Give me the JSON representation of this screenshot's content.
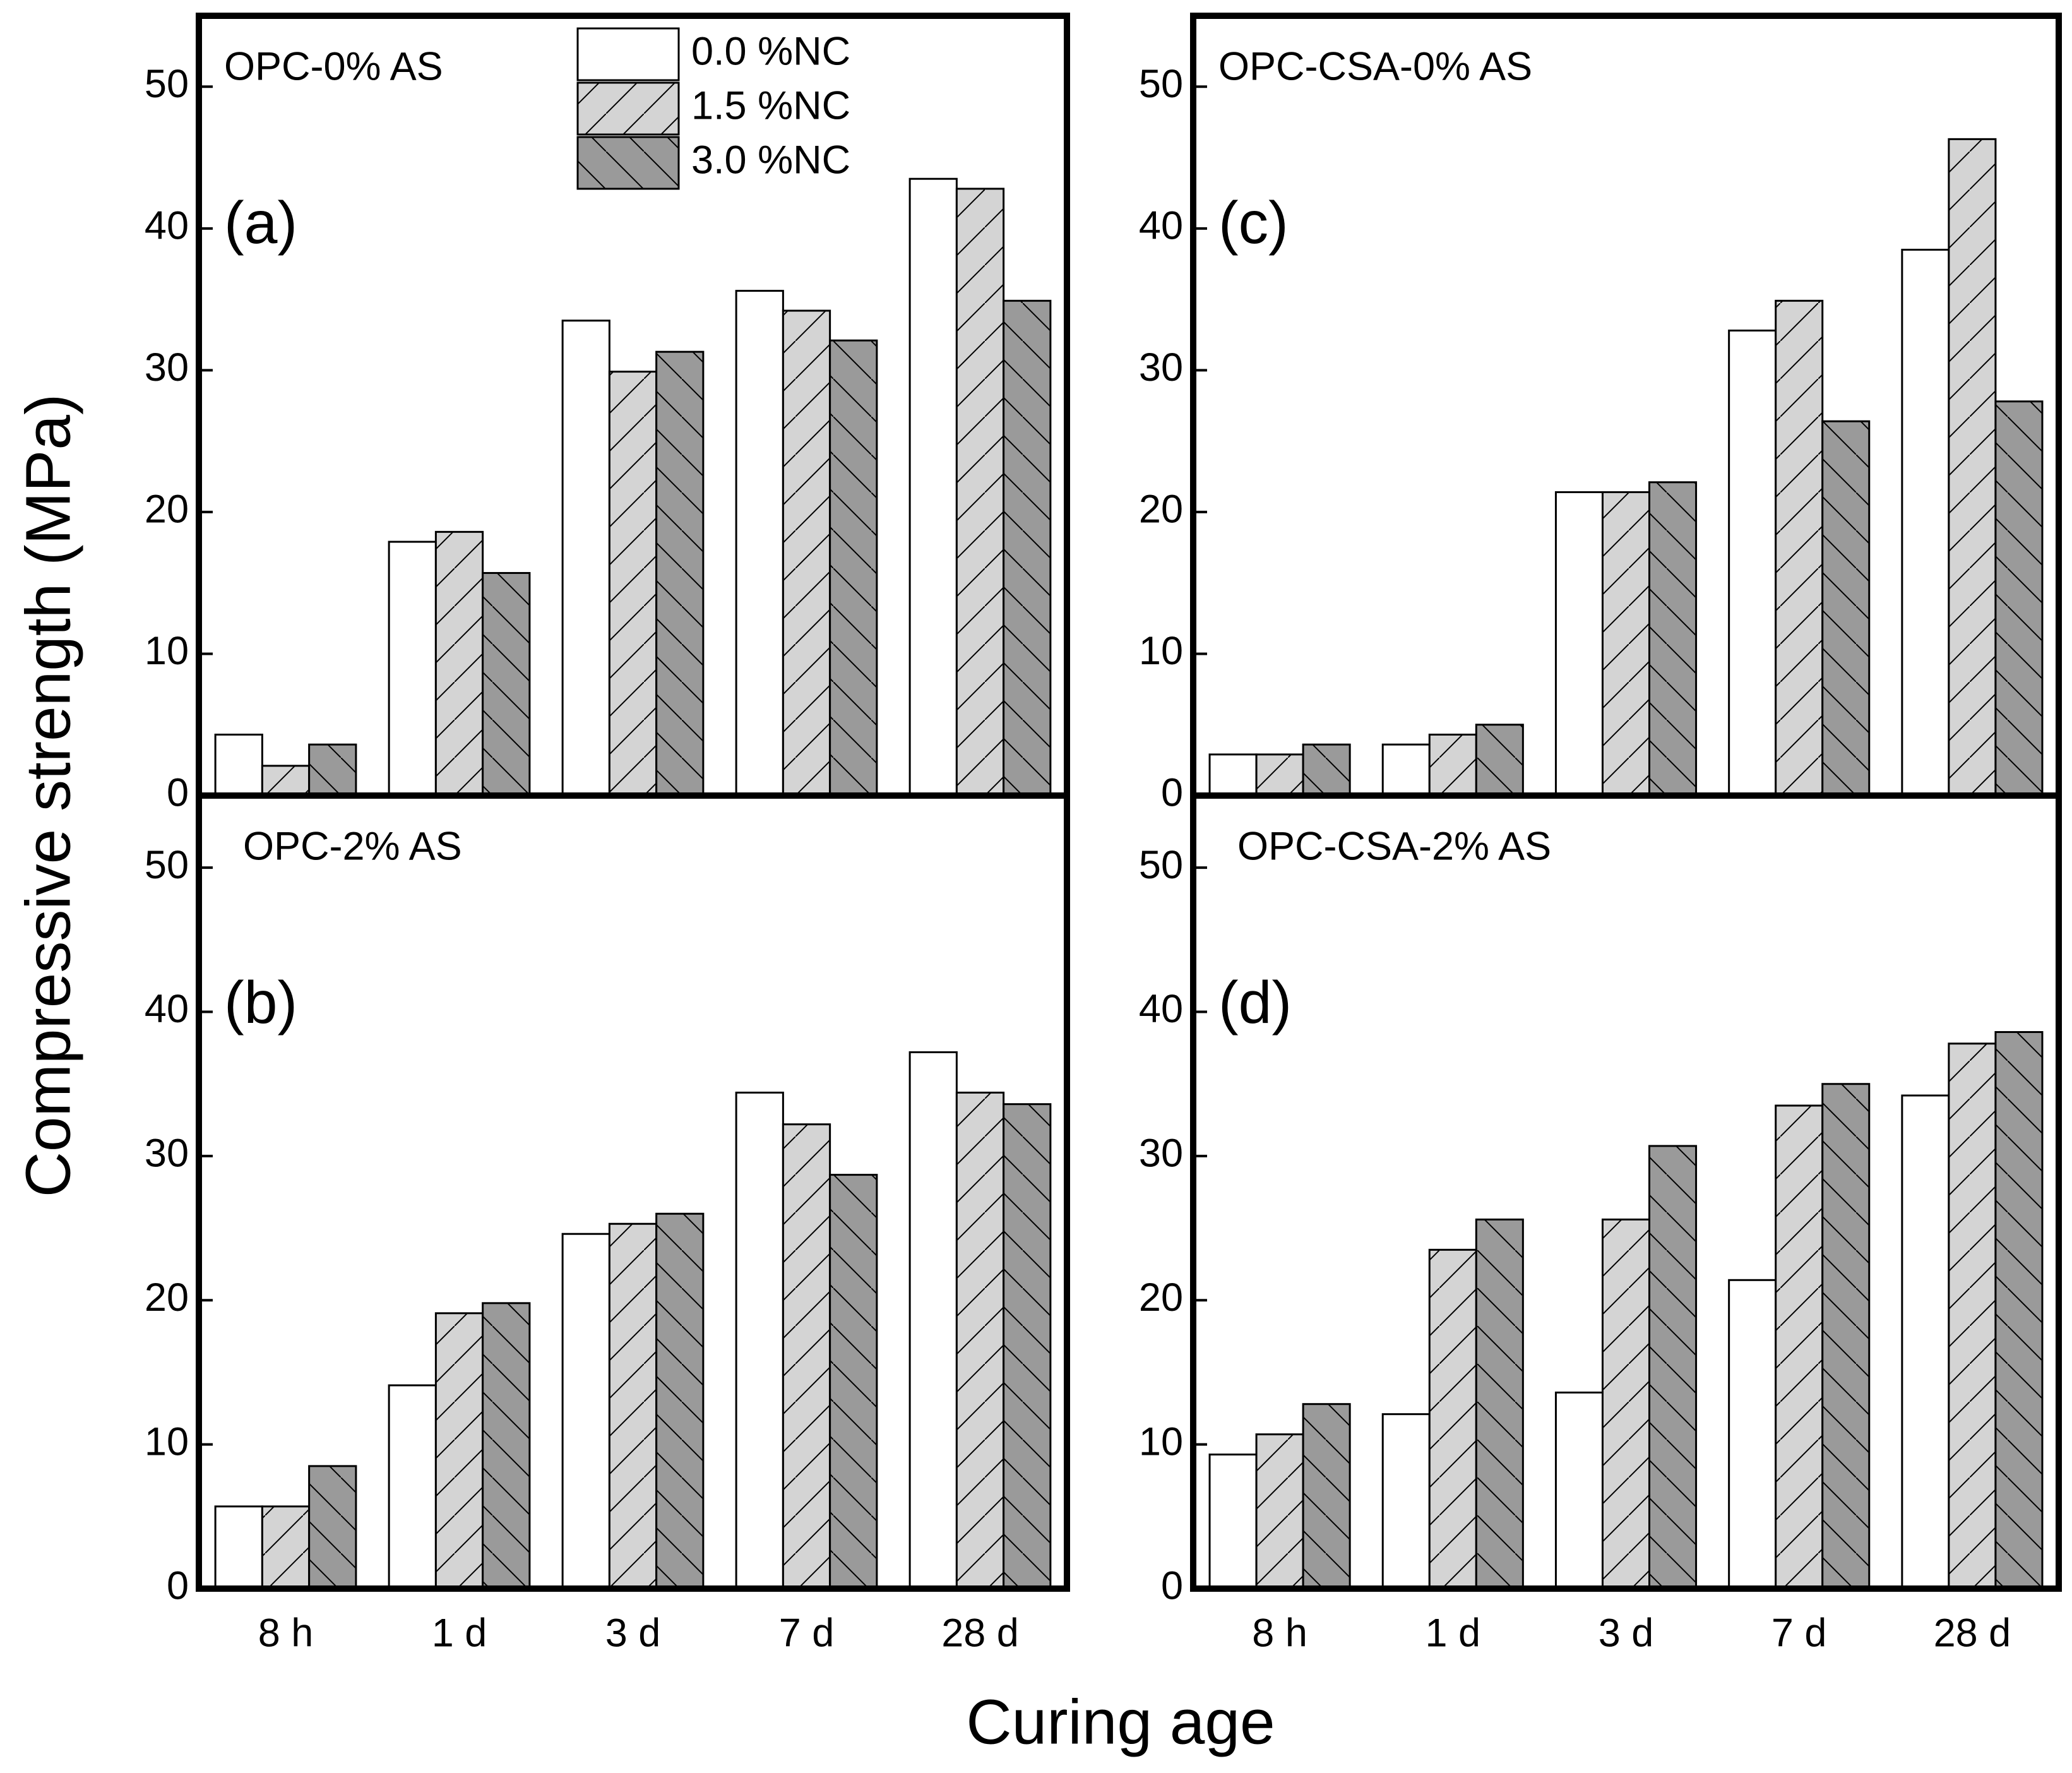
{
  "ylabel": "Compressive strength (MPa)",
  "xlabel": "Curing age",
  "chart_data": [
    {
      "type": "bar",
      "title": "OPC-0% AS",
      "annotation": "(a)",
      "categories": [
        null,
        null,
        null,
        null,
        null
      ],
      "series": [
        {
          "name": "0.0 %NC",
          "color": "#ffffff",
          "hatch": "none",
          "values": [
            4.3,
            17.9,
            33.5,
            35.6,
            43.5
          ]
        },
        {
          "name": "1.5 %NC",
          "color": "#d4d4d4",
          "hatch": "/",
          "values": [
            2.1,
            18.6,
            29.9,
            34.2,
            42.8
          ]
        },
        {
          "name": "3.0 %NC",
          "color": "#9a9a9a",
          "hatch": "\\",
          "values": [
            3.6,
            15.7,
            31.3,
            32.1,
            34.9
          ]
        }
      ],
      "ylim": [
        0,
        55
      ],
      "yticks": [
        0,
        10,
        20,
        30,
        40,
        50
      ],
      "legend": "upper center"
    },
    {
      "type": "bar",
      "title": "OPC-2% AS",
      "annotation": "(b)",
      "categories": [
        "8 h",
        "1 d",
        "3 d",
        "7 d",
        "28 d"
      ],
      "series": [
        {
          "color": "#ffffff",
          "hatch": "none",
          "values": [
            5.7,
            14.1,
            24.6,
            34.4,
            37.2
          ]
        },
        {
          "color": "#d4d4d4",
          "hatch": "/",
          "values": [
            5.7,
            19.1,
            25.3,
            32.2,
            34.4
          ]
        },
        {
          "color": "#9a9a9a",
          "hatch": "\\",
          "values": [
            8.5,
            19.8,
            26.0,
            28.7,
            33.6
          ]
        }
      ],
      "ylim": [
        0,
        55
      ],
      "yticks": [
        0,
        10,
        20,
        30,
        40,
        50
      ]
    },
    {
      "type": "bar",
      "title": "OPC-CSA-0% AS",
      "annotation": "(c)",
      "categories": [
        null,
        null,
        null,
        null,
        null
      ],
      "series": [
        {
          "color": "#ffffff",
          "hatch": "none",
          "values": [
            2.9,
            3.6,
            21.4,
            32.8,
            38.5
          ]
        },
        {
          "color": "#d4d4d4",
          "hatch": "/",
          "values": [
            2.9,
            4.3,
            21.4,
            34.9,
            46.3
          ]
        },
        {
          "color": "#9a9a9a",
          "hatch": "\\",
          "values": [
            3.6,
            5.0,
            22.1,
            26.4,
            27.8
          ]
        }
      ],
      "ylim": [
        0,
        55
      ],
      "yticks": [
        0,
        10,
        20,
        30,
        40,
        50
      ]
    },
    {
      "type": "bar",
      "title": "OPC-CSA-2% AS",
      "annotation": "(d)",
      "categories": [
        "8 h",
        "1 d",
        "3 d",
        "7 d",
        "28 d"
      ],
      "series": [
        {
          "color": "#ffffff",
          "hatch": "none",
          "values": [
            9.3,
            12.1,
            13.6,
            21.4,
            34.2
          ]
        },
        {
          "color": "#d4d4d4",
          "hatch": "/",
          "values": [
            10.7,
            23.5,
            25.6,
            33.5,
            37.8
          ]
        },
        {
          "color": "#9a9a9a",
          "hatch": "\\",
          "values": [
            12.8,
            25.6,
            30.7,
            35.0,
            38.6
          ]
        }
      ],
      "ylim": [
        0,
        55
      ],
      "yticks": [
        0,
        10,
        20,
        30,
        40,
        50
      ]
    }
  ]
}
